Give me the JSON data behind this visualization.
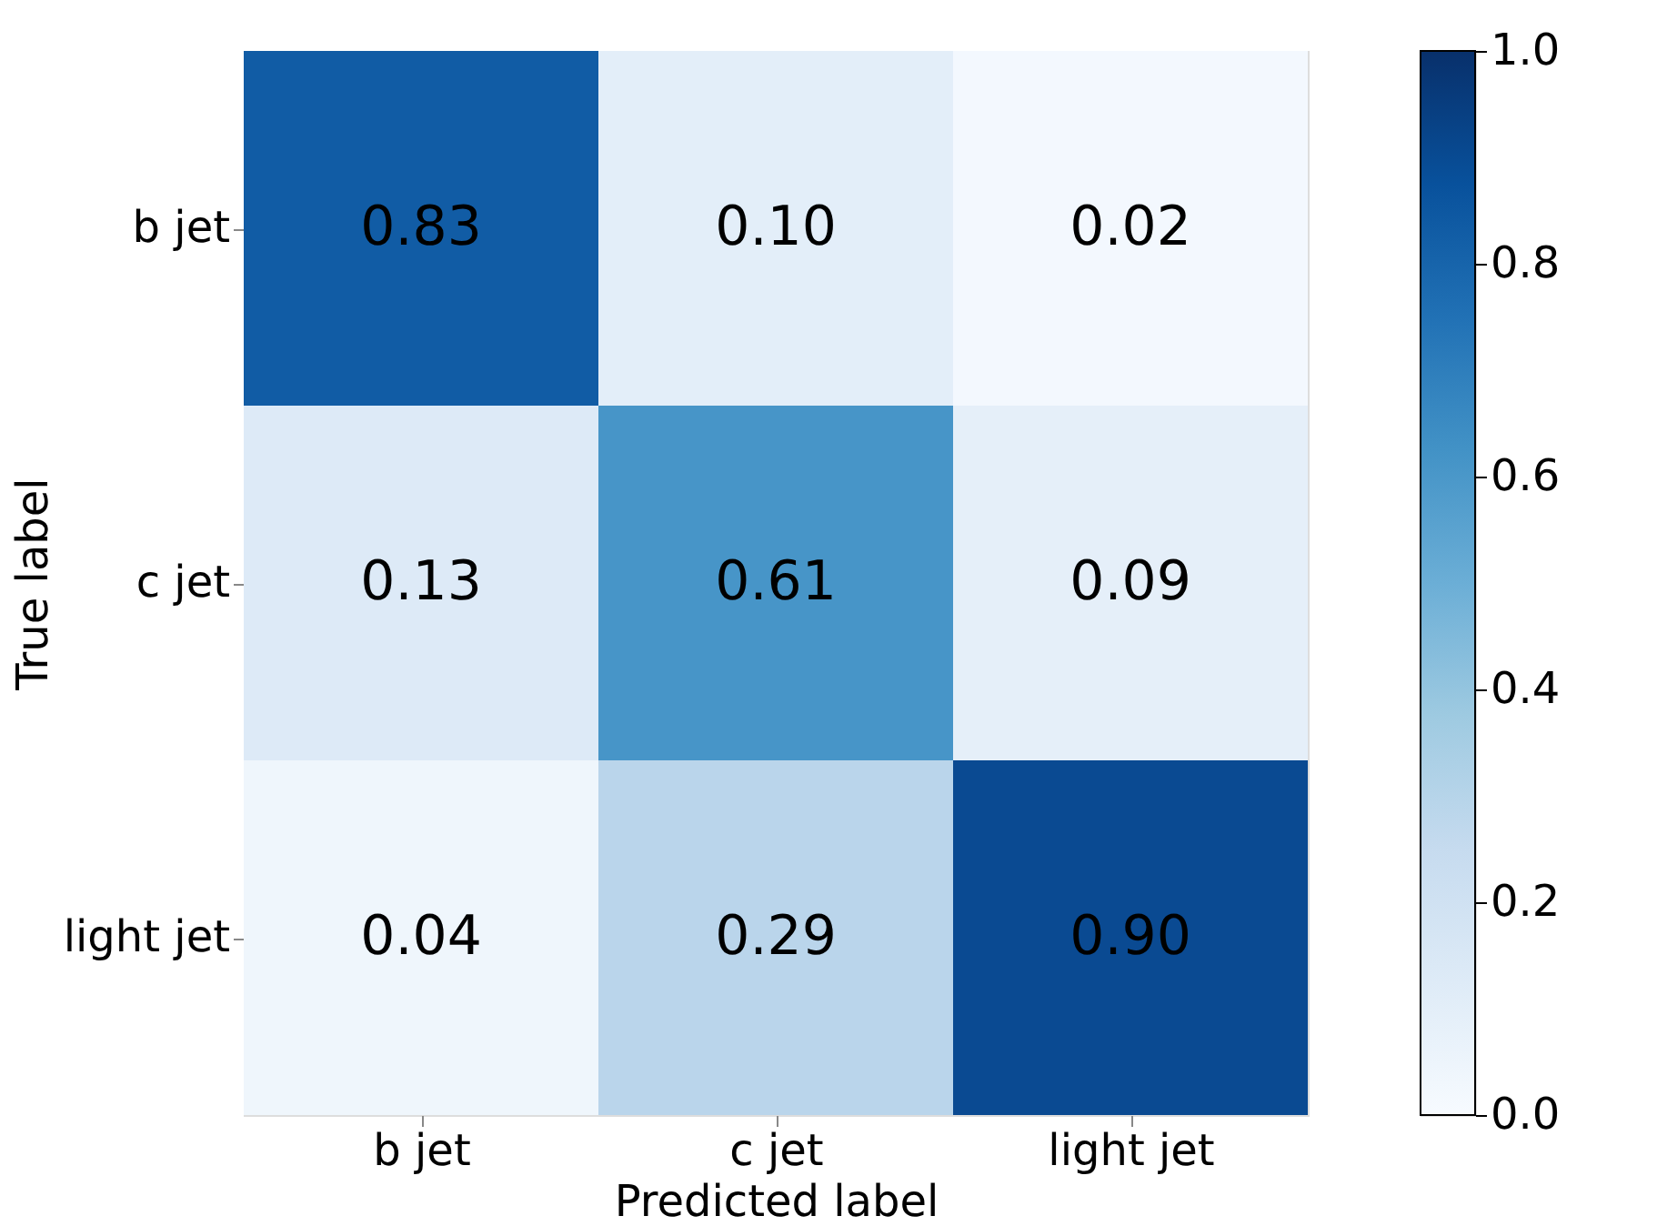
{
  "chart_data": {
    "type": "heatmap",
    "xlabel": "Predicted label",
    "ylabel": "True label",
    "categories": [
      "b jet",
      "c jet",
      "light jet"
    ],
    "y_categories": [
      "b jet",
      "c jet",
      "light jet"
    ],
    "cells": [
      [
        0.83,
        0.1,
        0.02
      ],
      [
        0.13,
        0.61,
        0.09
      ],
      [
        0.04,
        0.29,
        0.9
      ]
    ],
    "cell_labels": [
      [
        "0.83",
        "0.10",
        "0.02"
      ],
      [
        "0.13",
        "0.61",
        "0.09"
      ],
      [
        "0.04",
        "0.29",
        "0.90"
      ]
    ],
    "clim": [
      0.0,
      1.0
    ],
    "cticks": [
      {
        "value": 0.0,
        "label": "0.0"
      },
      {
        "value": 0.2,
        "label": "0.2"
      },
      {
        "value": 0.4,
        "label": "0.4"
      },
      {
        "value": 0.6,
        "label": "0.6"
      },
      {
        "value": 0.8,
        "label": "0.8"
      },
      {
        "value": 1.0,
        "label": "1.0"
      }
    ]
  }
}
